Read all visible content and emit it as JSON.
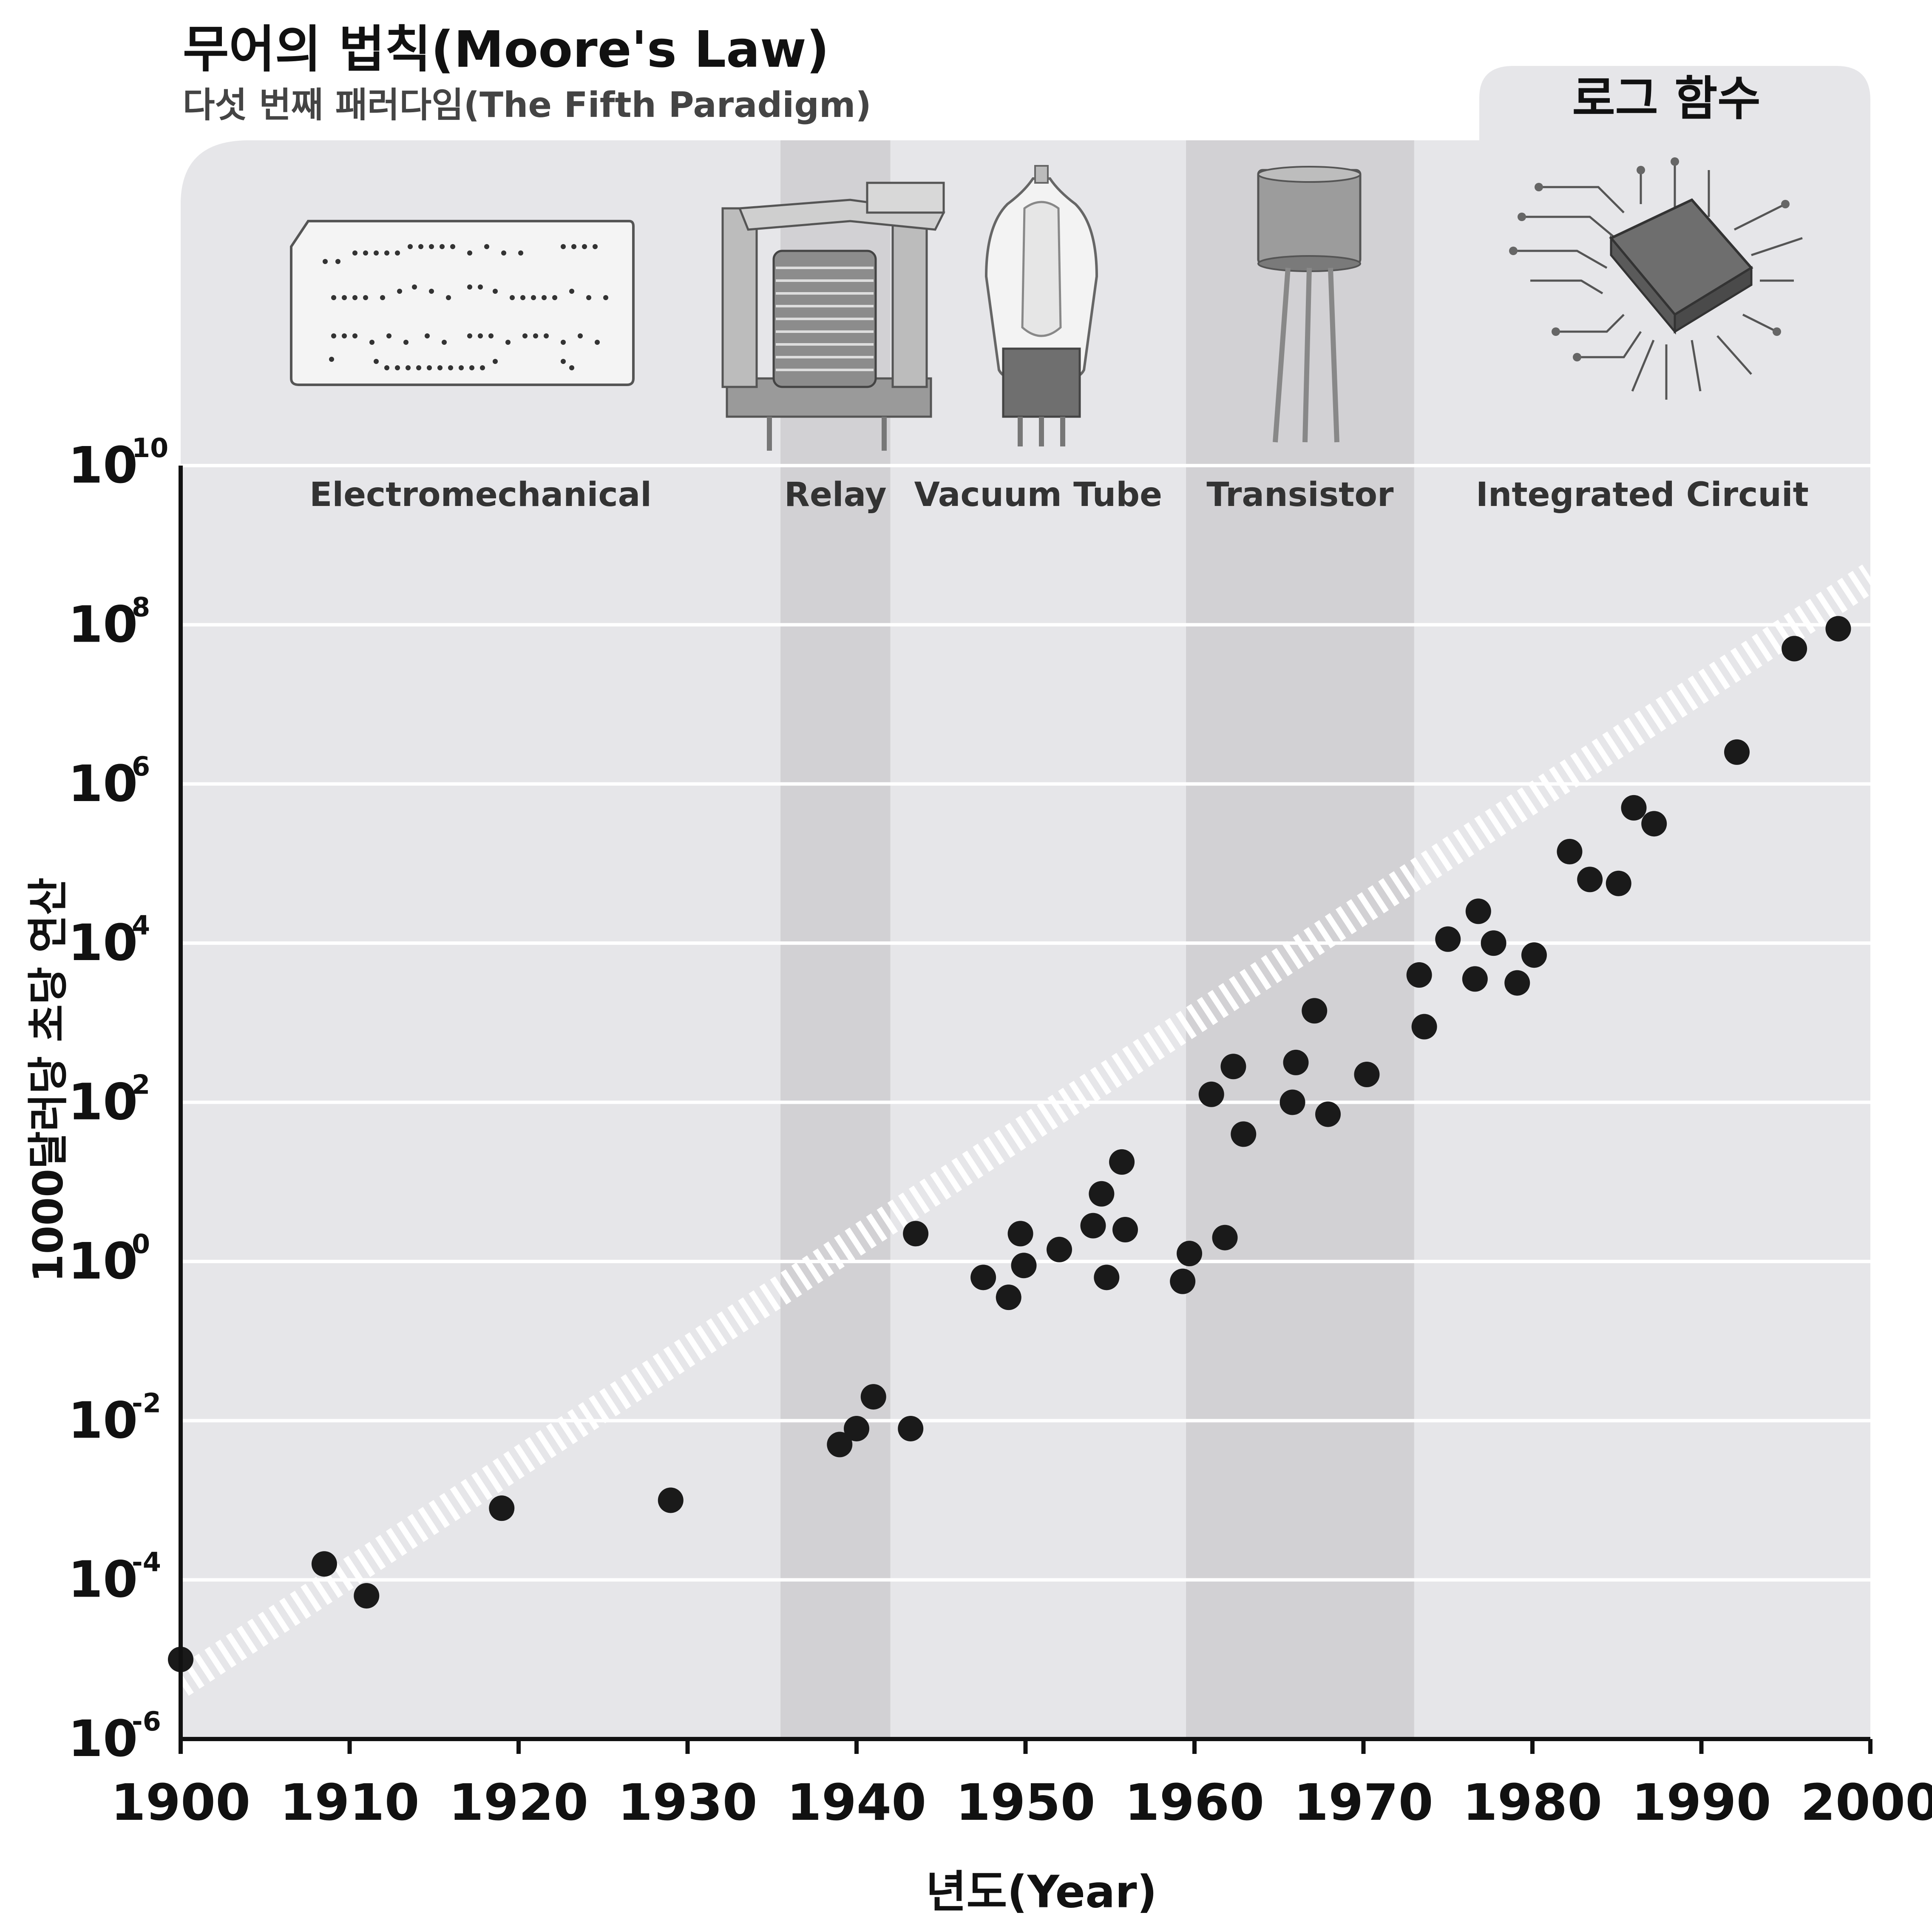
{
  "header": {
    "title": "무어의 법칙(Moore's Law)",
    "subtitle": "다섯 번째 패러다임(The Fifth Paradigm)",
    "tab_label": "로그 함수"
  },
  "chart_data": {
    "type": "scatter",
    "title": "무어의 법칙(Moore's Law)",
    "subtitle": "다섯 번째 패러다임(The Fifth Paradigm)",
    "xlabel": "년도(Year)",
    "ylabel": "1000달러당 초당 연산",
    "yscale": "log",
    "xlim": [
      1900,
      2000
    ],
    "ylim_exponent": [
      -6,
      10
    ],
    "x_ticks": [
      "1900",
      "1910",
      "1920",
      "1930",
      "1940",
      "1950",
      "1960",
      "1970",
      "1980",
      "1990",
      "2000"
    ],
    "y_ticks": [
      {
        "base": "10",
        "exp": "-6"
      },
      {
        "base": "10",
        "exp": "-4"
      },
      {
        "base": "10",
        "exp": "-2"
      },
      {
        "base": "10",
        "exp": "0"
      },
      {
        "base": "10",
        "exp": "2"
      },
      {
        "base": "10",
        "exp": "4"
      },
      {
        "base": "10",
        "exp": "6"
      },
      {
        "base": "10",
        "exp": "8"
      },
      {
        "base": "10",
        "exp": "10"
      }
    ],
    "grid": true,
    "paradigms": [
      {
        "label": "Electromechanical",
        "start": 1900,
        "end": 1935.5,
        "shaded": false
      },
      {
        "label": "Relay",
        "start": 1935.5,
        "end": 1942,
        "shaded": true
      },
      {
        "label": "Vacuum Tube",
        "start": 1942,
        "end": 1959.5,
        "shaded": false
      },
      {
        "label": "Transistor",
        "start": 1959.5,
        "end": 1973,
        "shaded": true
      },
      {
        "label": "Integrated Circuit",
        "start": 1973,
        "end": 2000,
        "shaded": false
      }
    ],
    "trend": {
      "x": [
        1900,
        2000
      ],
      "log10_y": [
        -5.3,
        8.6
      ]
    },
    "points": [
      {
        "x": 1900,
        "log10_y": -5.0
      },
      {
        "x": 1908.5,
        "log10_y": -3.8
      },
      {
        "x": 1911,
        "log10_y": -4.2
      },
      {
        "x": 1919,
        "log10_y": -3.1
      },
      {
        "x": 1929,
        "log10_y": -3.0
      },
      {
        "x": 1939,
        "log10_y": -2.3
      },
      {
        "x": 1940,
        "log10_y": -2.1
      },
      {
        "x": 1941,
        "log10_y": -1.7
      },
      {
        "x": 1943.2,
        "log10_y": -2.1
      },
      {
        "x": 1943.5,
        "log10_y": 0.35
      },
      {
        "x": 1947.5,
        "log10_y": -0.2
      },
      {
        "x": 1949,
        "log10_y": -0.45
      },
      {
        "x": 1949.7,
        "log10_y": 0.35
      },
      {
        "x": 1949.9,
        "log10_y": -0.05
      },
      {
        "x": 1952,
        "log10_y": 0.15
      },
      {
        "x": 1954,
        "log10_y": 0.45
      },
      {
        "x": 1954.5,
        "log10_y": 0.85
      },
      {
        "x": 1954.8,
        "log10_y": -0.2
      },
      {
        "x": 1955.7,
        "log10_y": 1.25
      },
      {
        "x": 1955.9,
        "log10_y": 0.4
      },
      {
        "x": 1959.3,
        "log10_y": -0.25
      },
      {
        "x": 1959.7,
        "log10_y": 0.1
      },
      {
        "x": 1961,
        "log10_y": 2.1
      },
      {
        "x": 1961.8,
        "log10_y": 0.3
      },
      {
        "x": 1962.3,
        "log10_y": 2.45
      },
      {
        "x": 1962.9,
        "log10_y": 1.6
      },
      {
        "x": 1965.8,
        "log10_y": 2.0
      },
      {
        "x": 1966,
        "log10_y": 2.5
      },
      {
        "x": 1967.1,
        "log10_y": 3.15
      },
      {
        "x": 1967.9,
        "log10_y": 1.85
      },
      {
        "x": 1970.2,
        "log10_y": 2.35
      },
      {
        "x": 1973.3,
        "log10_y": 3.6
      },
      {
        "x": 1973.6,
        "log10_y": 2.95
      },
      {
        "x": 1975,
        "log10_y": 4.05
      },
      {
        "x": 1976.6,
        "log10_y": 3.55
      },
      {
        "x": 1976.8,
        "log10_y": 4.4
      },
      {
        "x": 1977.7,
        "log10_y": 4.0
      },
      {
        "x": 1979.1,
        "log10_y": 3.5
      },
      {
        "x": 1980.1,
        "log10_y": 3.85
      },
      {
        "x": 1982.2,
        "log10_y": 5.15
      },
      {
        "x": 1983.4,
        "log10_y": 4.8
      },
      {
        "x": 1985.1,
        "log10_y": 4.75
      },
      {
        "x": 1986,
        "log10_y": 5.7
      },
      {
        "x": 1987.2,
        "log10_y": 5.5
      },
      {
        "x": 1992.1,
        "log10_y": 6.4
      },
      {
        "x": 1995.5,
        "log10_y": 7.7
      },
      {
        "x": 1998.1,
        "log10_y": 7.95
      }
    ]
  },
  "colors": {
    "panel_bg": "#e6e6e9",
    "shaded_band": "#d2d1d4",
    "grid": "#ffffff",
    "trend": "#ffffff",
    "point": "#1a1a1a",
    "axis": "#111111"
  },
  "icons": [
    "punch-card-icon",
    "relay-icon",
    "vacuum-tube-icon",
    "transistor-icon",
    "integrated-circuit-icon"
  ]
}
